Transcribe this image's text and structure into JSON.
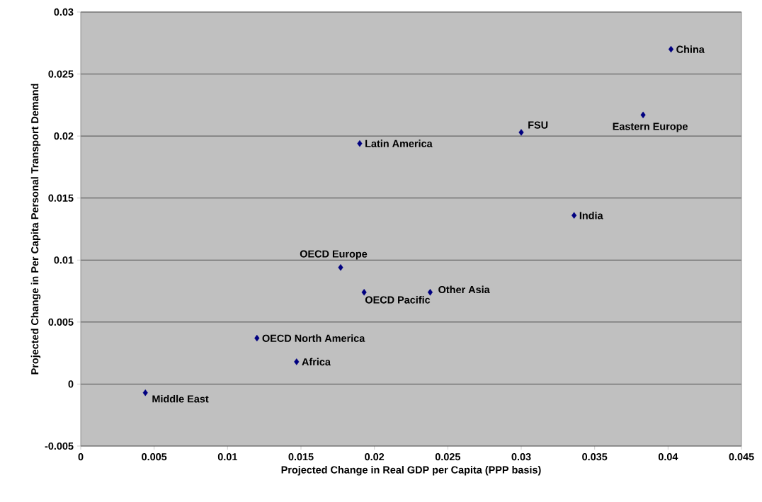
{
  "chart_data": {
    "type": "scatter",
    "xlabel": "Projected Change in Real GDP per Capita (PPP basis)",
    "ylabel": "Projected Change in Per Capita Personal Transport Demand",
    "x": [
      0.0402,
      0.0383,
      0.03,
      0.019,
      0.0336,
      0.0177,
      0.0193,
      0.0238,
      0.012,
      0.0147,
      0.0044
    ],
    "values": [
      0.027,
      0.0217,
      0.0203,
      0.0194,
      0.0136,
      0.0094,
      0.0074,
      0.0074,
      0.0037,
      0.0018,
      -0.0007
    ],
    "color": "#000080",
    "marker": "diamond",
    "grid": "y",
    "xlim": [
      0,
      0.045
    ],
    "ylim": [
      -0.005,
      0.03
    ],
    "xticks": [
      0,
      0.005,
      0.01,
      0.015,
      0.02,
      0.025,
      0.03,
      0.035,
      0.04,
      0.045
    ],
    "yticks": [
      -0.005,
      0,
      0.005,
      0.01,
      0.015,
      0.02,
      0.025,
      0.03
    ],
    "annotations": [
      {
        "text": "China",
        "x": 0.0402,
        "y": 0.027
      },
      {
        "text": "Eastern Europe",
        "x": 0.0383,
        "y": 0.0217
      },
      {
        "text": "FSU",
        "x": 0.03,
        "y": 0.0203
      },
      {
        "text": "Latin America",
        "x": 0.019,
        "y": 0.0194
      },
      {
        "text": "India",
        "x": 0.0336,
        "y": 0.0136
      },
      {
        "text": "OECD Europe",
        "x": 0.0177,
        "y": 0.0094
      },
      {
        "text": "OECD Pacific",
        "x": 0.0193,
        "y": 0.0074
      },
      {
        "text": "Other Asia",
        "x": 0.0238,
        "y": 0.0074
      },
      {
        "text": "OECD North America",
        "x": 0.012,
        "y": 0.0037
      },
      {
        "text": "Africa",
        "x": 0.0147,
        "y": 0.0018
      },
      {
        "text": "Middle East",
        "x": 0.0044,
        "y": -0.0007
      }
    ]
  }
}
